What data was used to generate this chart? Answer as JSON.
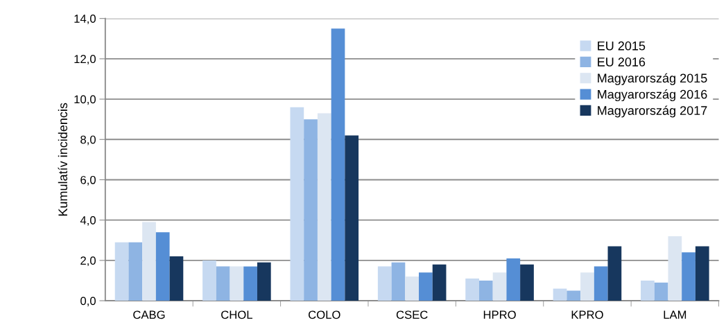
{
  "chart_data": {
    "type": "bar",
    "ylabel": "Kumulatív incidencis",
    "categories": [
      "CABG",
      "CHOL",
      "COLO",
      "CSEC",
      "HPRO",
      "KPRO",
      "LAM"
    ],
    "series": [
      {
        "name": "EU 2015",
        "color": "#c6d9f1",
        "values": [
          2.9,
          2.0,
          9.6,
          1.7,
          1.1,
          0.6,
          1.0
        ]
      },
      {
        "name": "EU 2016",
        "color": "#8eb4e3",
        "values": [
          2.9,
          1.7,
          9.0,
          1.9,
          1.0,
          0.5,
          0.9
        ]
      },
      {
        "name": "Magyarország 2015",
        "color": "#dce6f2",
        "values": [
          3.9,
          1.7,
          9.3,
          1.2,
          1.4,
          1.4,
          3.2
        ]
      },
      {
        "name": "Magyarország 2016",
        "color": "#558ed5",
        "values": [
          3.4,
          1.7,
          13.5,
          1.4,
          2.1,
          1.7,
          2.4
        ]
      },
      {
        "name": "Magyarország 2017",
        "color": "#17375e",
        "values": [
          2.2,
          1.9,
          8.2,
          1.8,
          1.8,
          2.7,
          2.7
        ]
      }
    ],
    "ylim": [
      0,
      14
    ],
    "yticks": [
      {
        "value": 0,
        "label": "0,0"
      },
      {
        "value": 2,
        "label": "2,0"
      },
      {
        "value": 4,
        "label": "4,0"
      },
      {
        "value": 6,
        "label": "6,0"
      },
      {
        "value": 8,
        "label": "8,0"
      },
      {
        "value": 10,
        "label": "10,0"
      },
      {
        "value": 12,
        "label": "12,0"
      },
      {
        "value": 14,
        "label": "14,0"
      }
    ],
    "grid": "y",
    "legend": "top right"
  }
}
